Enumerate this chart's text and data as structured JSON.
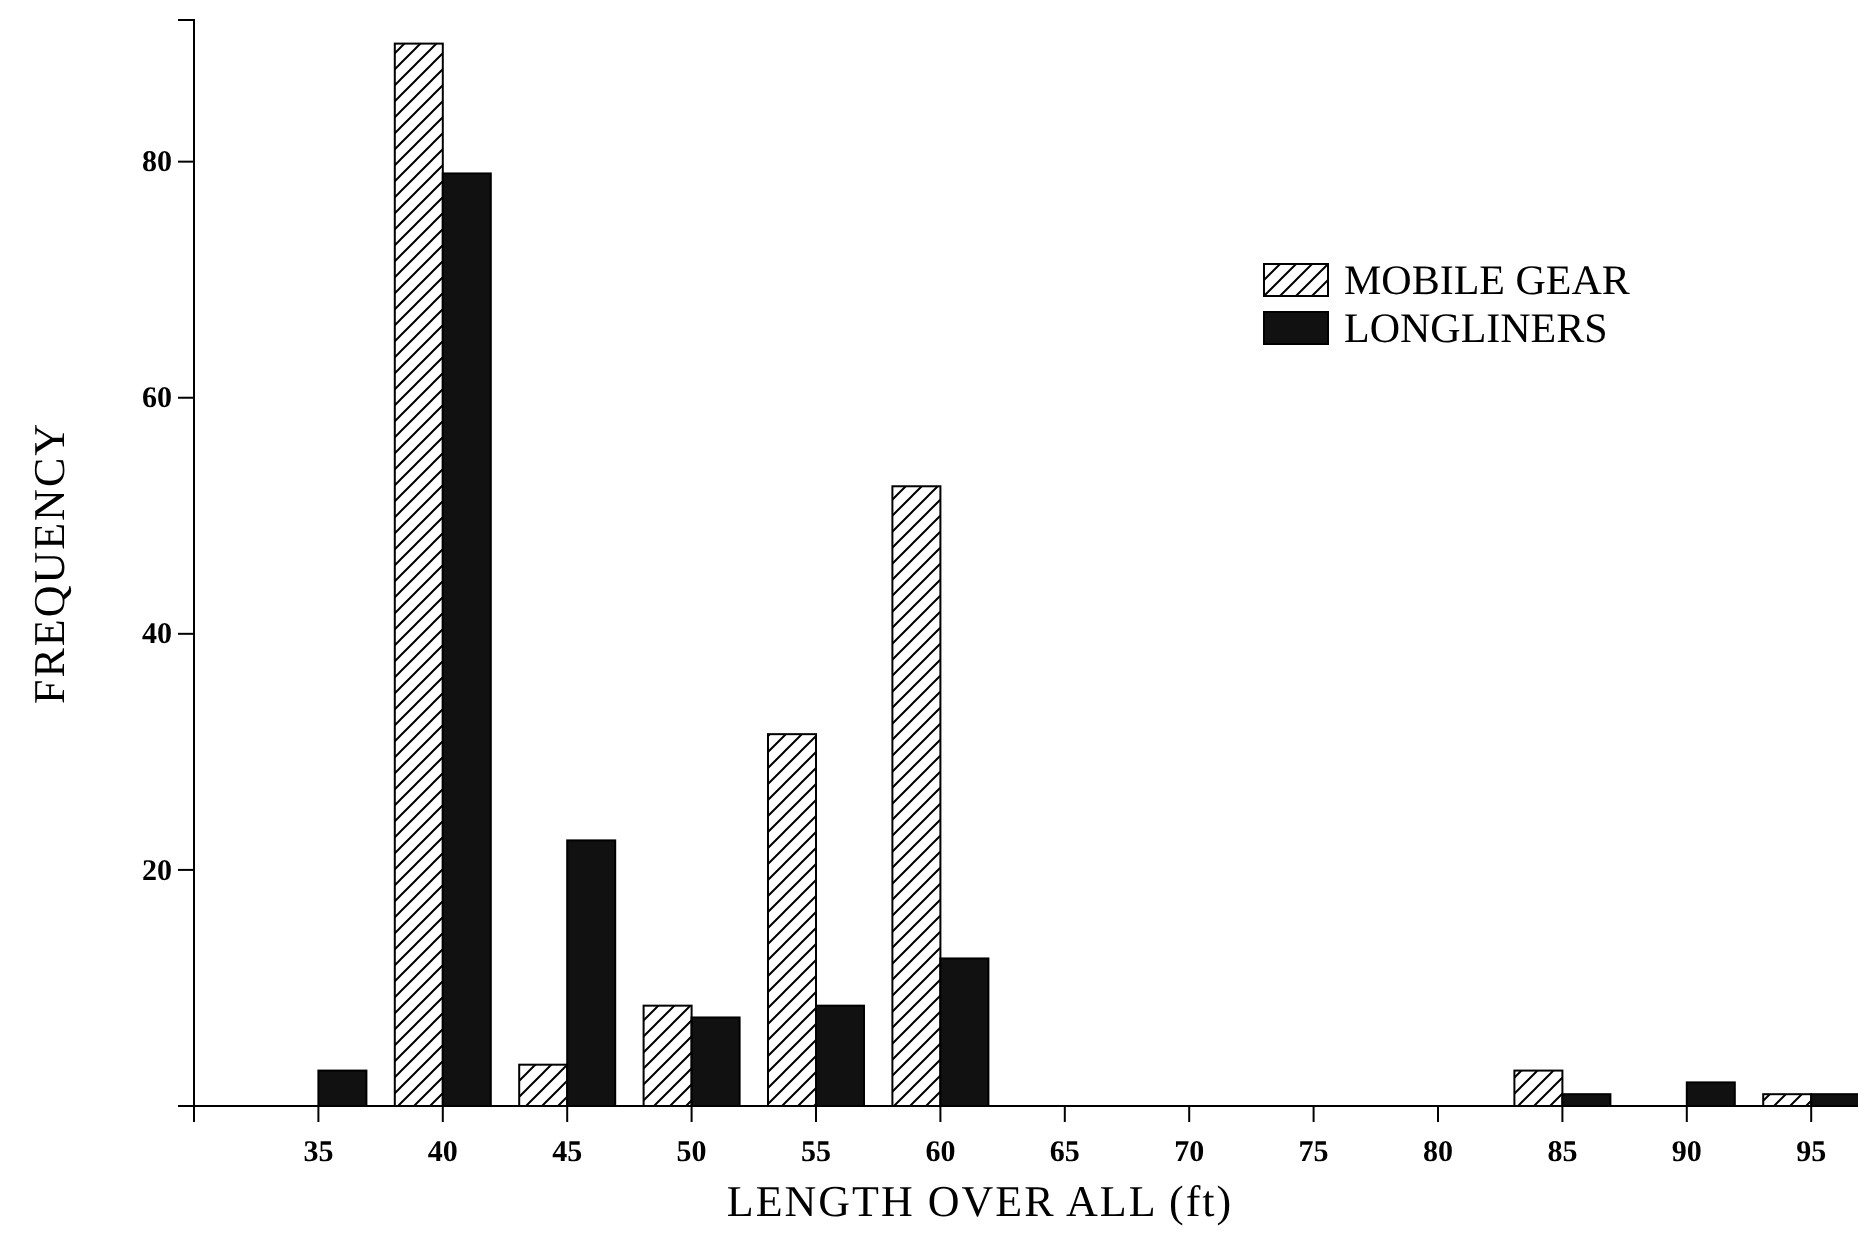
{
  "chart_data": {
    "type": "bar",
    "xlabel": "LENGTH OVER ALL (ft)",
    "ylabel": "FREQUENCY",
    "categories": [
      null,
      "35",
      "40",
      "45",
      "50",
      "55",
      "60",
      "65",
      "70",
      "75",
      "80",
      "85",
      "90",
      "95"
    ],
    "series": [
      {
        "name": "MOBILE GEAR",
        "color": "#000000",
        "values": [
          0,
          0,
          90,
          3.5,
          8.5,
          31.5,
          52.5,
          0,
          0,
          0,
          0,
          3,
          0,
          1
        ]
      },
      {
        "name": "LONGLINERS",
        "color": "#111111",
        "values": [
          0,
          3,
          79,
          22.5,
          7.5,
          8.5,
          12.5,
          0,
          0,
          0,
          0,
          1,
          2,
          1
        ]
      }
    ],
    "ylim": [
      0,
      92
    ],
    "yticks": [
      {
        "value": 0,
        "label": null
      },
      20,
      40,
      60,
      80
    ],
    "legend": "top right"
  }
}
